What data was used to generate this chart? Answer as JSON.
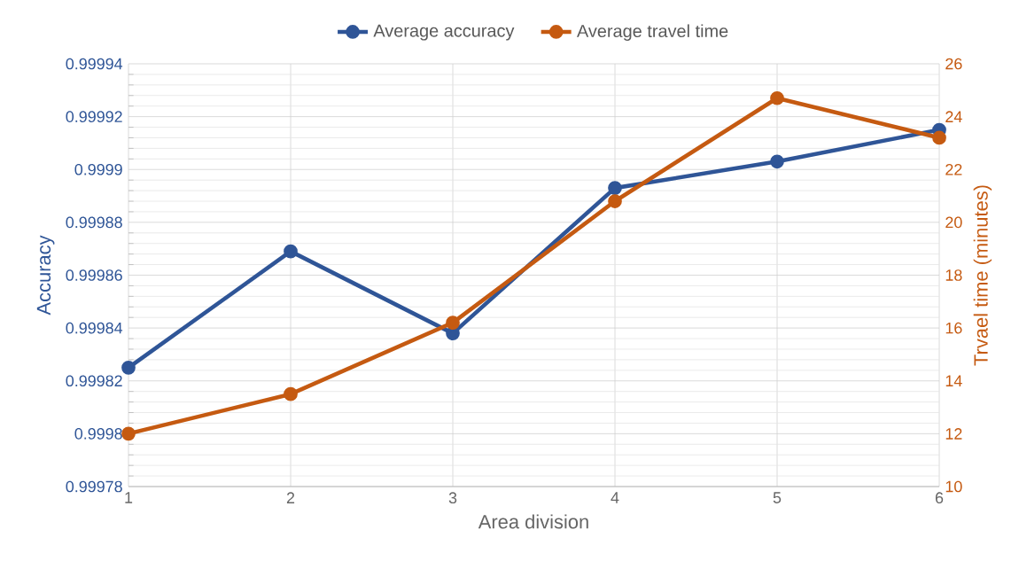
{
  "chart_data": {
    "type": "line",
    "xlabel": "Area division",
    "ylabel": "Accuracy",
    "y2label": "Trvael time (minutes)",
    "categories": [
      "1",
      "2",
      "3",
      "4",
      "5",
      "6"
    ],
    "series": [
      {
        "name": "Average accuracy",
        "color": "#2f5597",
        "values": [
          0.999825,
          0.999869,
          0.999838,
          0.999893,
          0.999903,
          0.999915
        ]
      },
      {
        "name": "Average travel time",
        "color": "#c55a11",
        "axis": "y2",
        "values": [
          12.0,
          13.5,
          16.2,
          20.8,
          24.7,
          23.2
        ]
      }
    ],
    "ylim": [
      0.99978,
      0.99994
    ],
    "yticks": [
      0.99978,
      0.9998,
      0.99982,
      0.99984,
      0.99986,
      0.99988,
      0.9999,
      0.99992,
      0.99994
    ],
    "y2lim": [
      10,
      26
    ],
    "y2ticks": [
      10,
      12,
      14,
      16,
      18,
      20,
      22,
      24,
      26
    ],
    "grid": true,
    "legend": "top",
    "marker": "circle",
    "line_style": "solid"
  }
}
